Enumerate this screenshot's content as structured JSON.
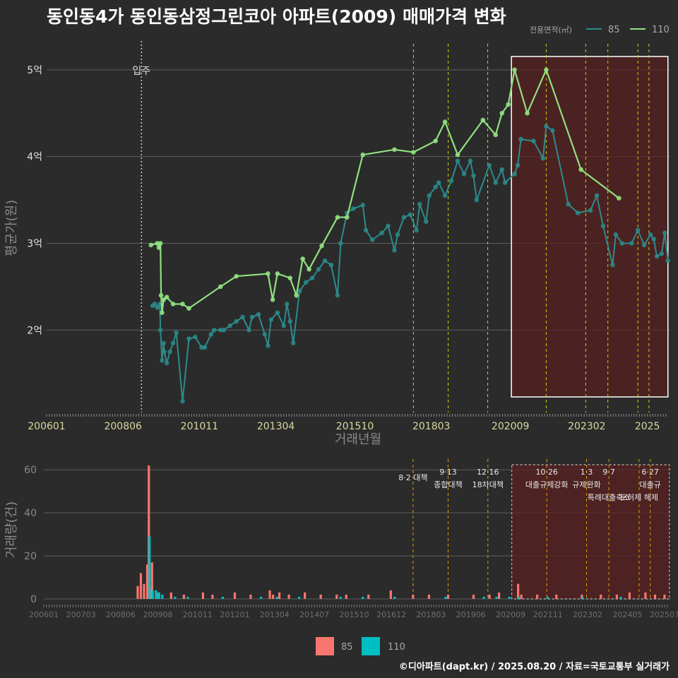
{
  "title": "동인동4가 동인동삼정그린코아 아파트(2009) 매매가격 변화",
  "footer": "©디아파트(dapt.kr) / 2025.08.20 / 자료=국토교통부 실거래가",
  "colors": {
    "s85_line": "#2e8b8b",
    "s85_point": "#2a8a8a",
    "s110": "#90e080",
    "bar85": "#f8766d",
    "bar110": "#00bfc4",
    "policy": "#d4d40a",
    "highlight": "#5a2020"
  },
  "chart_data": [
    {
      "type": "line",
      "title": "동인동4가 동인동삼정그린코아 아파트(2009) 매매가격 변화",
      "xlabel": "거래년월",
      "ylabel": "평균가(원)",
      "xticks": [
        "200601",
        "200806",
        "201011",
        "201304",
        "201510",
        "201803",
        "202009",
        "202302",
        "2025"
      ],
      "yticks": [
        "2억",
        "3억",
        "4억",
        "5억"
      ],
      "ylim": [
        1.05,
        5.3
      ],
      "xlim": [
        2006.0,
        2025.7
      ],
      "legend_title": "전용면적(㎡)",
      "legend_position": "top-right",
      "move_in_label": "입주",
      "move_in_x": 2009.0,
      "policy_lines_x": [
        2017.6,
        2018.7,
        2019.95,
        2021.8,
        2023.05,
        2023.75,
        2024.7,
        2025.05
      ],
      "highlight_range": [
        2020.7,
        2025.65
      ],
      "series": [
        {
          "name": "85",
          "points": [
            [
              2009.35,
              2.28
            ],
            [
              2009.42,
              2.3
            ],
            [
              2009.5,
              2.26
            ],
            [
              2009.58,
              2.3
            ],
            [
              2009.6,
              2.0
            ],
            [
              2009.65,
              1.65
            ],
            [
              2009.7,
              1.85
            ],
            [
              2009.72,
              1.75
            ],
            [
              2009.8,
              1.62
            ],
            [
              2009.9,
              1.75
            ],
            [
              2010.0,
              1.85
            ],
            [
              2010.1,
              1.97
            ],
            [
              2010.3,
              1.18
            ],
            [
              2010.5,
              1.9
            ],
            [
              2010.7,
              1.92
            ],
            [
              2010.9,
              1.8
            ],
            [
              2011.0,
              1.8
            ],
            [
              2011.2,
              1.95
            ],
            [
              2011.3,
              2.0
            ],
            [
              2011.5,
              2.0
            ],
            [
              2011.6,
              2.0
            ],
            [
              2011.8,
              2.05
            ],
            [
              2012.0,
              2.1
            ],
            [
              2012.2,
              2.15
            ],
            [
              2012.4,
              2.0
            ],
            [
              2012.5,
              2.15
            ],
            [
              2012.7,
              2.18
            ],
            [
              2012.9,
              1.95
            ],
            [
              2013.0,
              1.82
            ],
            [
              2013.1,
              2.12
            ],
            [
              2013.3,
              2.2
            ],
            [
              2013.5,
              2.05
            ],
            [
              2013.6,
              2.3
            ],
            [
              2013.7,
              2.1
            ],
            [
              2013.8,
              1.85
            ],
            [
              2014.0,
              2.45
            ],
            [
              2014.2,
              2.55
            ],
            [
              2014.4,
              2.6
            ],
            [
              2014.6,
              2.7
            ],
            [
              2014.8,
              2.8
            ],
            [
              2015.0,
              2.75
            ],
            [
              2015.2,
              2.4
            ],
            [
              2015.3,
              3.0
            ],
            [
              2015.5,
              3.35
            ],
            [
              2015.7,
              3.4
            ],
            [
              2016.0,
              3.44
            ],
            [
              2016.1,
              3.15
            ],
            [
              2016.3,
              3.04
            ],
            [
              2016.6,
              3.12
            ],
            [
              2016.8,
              3.2
            ],
            [
              2017.0,
              2.92
            ],
            [
              2017.1,
              3.1
            ],
            [
              2017.3,
              3.3
            ],
            [
              2017.5,
              3.33
            ],
            [
              2017.7,
              3.15
            ],
            [
              2017.8,
              3.45
            ],
            [
              2018.0,
              3.25
            ],
            [
              2018.1,
              3.55
            ],
            [
              2018.3,
              3.65
            ],
            [
              2018.4,
              3.7
            ],
            [
              2018.6,
              3.55
            ],
            [
              2018.8,
              3.72
            ],
            [
              2019.0,
              3.95
            ],
            [
              2019.2,
              3.8
            ],
            [
              2019.4,
              3.95
            ],
            [
              2019.5,
              3.78
            ],
            [
              2019.6,
              3.5
            ],
            [
              2020.0,
              3.9
            ],
            [
              2020.2,
              3.7
            ],
            [
              2020.4,
              3.85
            ],
            [
              2020.5,
              3.7
            ],
            [
              2020.8,
              3.8
            ],
            [
              2020.9,
              3.9
            ],
            [
              2021.0,
              4.2
            ],
            [
              2021.4,
              4.18
            ],
            [
              2021.7,
              3.98
            ],
            [
              2021.8,
              4.35
            ],
            [
              2022.0,
              4.3
            ],
            [
              2022.5,
              3.45
            ],
            [
              2022.8,
              3.35
            ],
            [
              2023.2,
              3.38
            ],
            [
              2023.4,
              3.55
            ],
            [
              2023.6,
              3.2
            ],
            [
              2023.9,
              2.75
            ],
            [
              2024.0,
              3.1
            ],
            [
              2024.2,
              3.0
            ],
            [
              2024.5,
              3.0
            ],
            [
              2024.7,
              3.15
            ],
            [
              2024.9,
              2.98
            ],
            [
              2025.1,
              3.1
            ],
            [
              2025.2,
              3.05
            ],
            [
              2025.3,
              2.85
            ],
            [
              2025.45,
              2.88
            ],
            [
              2025.55,
              3.12
            ],
            [
              2025.65,
              2.8
            ]
          ]
        },
        {
          "name": "110",
          "points": [
            [
              2009.3,
              2.98
            ],
            [
              2009.5,
              3.0
            ],
            [
              2009.55,
              2.95
            ],
            [
              2009.6,
              3.0
            ],
            [
              2009.62,
              2.4
            ],
            [
              2009.65,
              2.2
            ],
            [
              2009.7,
              2.35
            ],
            [
              2009.8,
              2.38
            ],
            [
              2010.0,
              2.3
            ],
            [
              2010.3,
              2.3
            ],
            [
              2010.5,
              2.25
            ],
            [
              2011.5,
              2.5
            ],
            [
              2012.0,
              2.62
            ],
            [
              2013.0,
              2.65
            ],
            [
              2013.15,
              2.35
            ],
            [
              2013.3,
              2.65
            ],
            [
              2013.7,
              2.6
            ],
            [
              2013.9,
              2.4
            ],
            [
              2014.1,
              2.82
            ],
            [
              2014.3,
              2.7
            ],
            [
              2014.7,
              2.97
            ],
            [
              2015.2,
              3.3
            ],
            [
              2015.5,
              3.3
            ],
            [
              2016.0,
              4.02
            ],
            [
              2017.0,
              4.08
            ],
            [
              2017.6,
              4.05
            ],
            [
              2018.3,
              4.18
            ],
            [
              2018.6,
              4.4
            ],
            [
              2019.0,
              4.02
            ],
            [
              2019.8,
              4.42
            ],
            [
              2020.2,
              4.25
            ],
            [
              2020.4,
              4.5
            ],
            [
              2020.6,
              4.6
            ],
            [
              2020.8,
              5.0
            ],
            [
              2021.2,
              4.5
            ],
            [
              2021.8,
              5.0
            ],
            [
              2022.9,
              3.85
            ],
            [
              2024.1,
              3.52
            ]
          ]
        }
      ]
    },
    {
      "type": "bar",
      "ylabel": "거래량(건)",
      "ylim": [
        0,
        65
      ],
      "yticks": [
        "0",
        "20",
        "40",
        "60"
      ],
      "xticks": [
        "200601",
        "200703",
        "200806",
        "200908",
        "201011",
        "201201",
        "201304",
        "201407",
        "201510",
        "201612",
        "201803",
        "201906",
        "202009",
        "202111",
        "202302",
        "202405",
        "202507"
      ],
      "legend_position": "bottom",
      "series": [
        {
          "name": "85",
          "x": [
            2008.95,
            2009.05,
            2009.15,
            2009.25,
            2009.3,
            2009.35,
            2009.4,
            2009.6,
            2010.0,
            2010.4,
            2011.0,
            2011.3,
            2012.0,
            2012.5,
            2013.1,
            2013.2,
            2013.4,
            2013.7,
            2014.2,
            2014.7,
            2015.2,
            2015.5,
            2016.2,
            2016.9,
            2017.6,
            2018.1,
            2018.7,
            2019.5,
            2020.0,
            2020.3,
            2020.9,
            2021.0,
            2021.5,
            2022.1,
            2022.9,
            2023.5,
            2024.0,
            2024.4,
            2024.9,
            2025.2,
            2025.5
          ],
          "values": [
            6,
            12,
            7,
            16,
            62,
            5,
            17,
            3,
            3,
            2,
            3,
            2,
            3,
            2,
            4,
            2,
            3,
            2,
            3,
            2,
            2,
            2,
            2,
            4,
            2,
            2,
            2,
            2,
            2,
            3,
            7,
            2,
            2,
            2,
            2,
            2,
            2,
            3,
            3,
            2,
            2
          ]
        },
        {
          "name": "110",
          "x": [
            2009.3,
            2009.4,
            2009.5,
            2009.6,
            2009.7,
            2010.1,
            2010.5,
            2011.6,
            2012.8,
            2013.3,
            2014.0,
            2015.3,
            2016.0,
            2017.0,
            2018.6,
            2019.8,
            2020.2,
            2020.6,
            2020.9,
            2021.8,
            2022.9,
            2024.1
          ],
          "values": [
            29,
            4,
            4,
            3,
            2,
            1,
            1,
            1,
            1,
            1,
            1,
            1,
            1,
            1,
            1,
            1,
            1,
            1,
            1,
            1,
            1,
            1
          ]
        }
      ],
      "policy_labels": [
        {
          "x": 2017.6,
          "date": "",
          "text": "8·2 대책"
        },
        {
          "x": 2018.7,
          "date": "9·13",
          "text": "종합대책"
        },
        {
          "x": 2019.95,
          "date": "12·16",
          "text": "18차대책"
        },
        {
          "x": 2021.8,
          "date": "10·26",
          "text": "대출규제강화"
        },
        {
          "x": 2023.05,
          "date": "1·3",
          "text": "규제완화"
        },
        {
          "x": 2023.75,
          "date": "9·7",
          "text": "특례대출축소"
        },
        {
          "x": 2025.05,
          "date": "6·27",
          "text": "대출규"
        },
        {
          "x": 2024.7,
          "date": "",
          "text": "토허제 해제"
        }
      ]
    }
  ]
}
